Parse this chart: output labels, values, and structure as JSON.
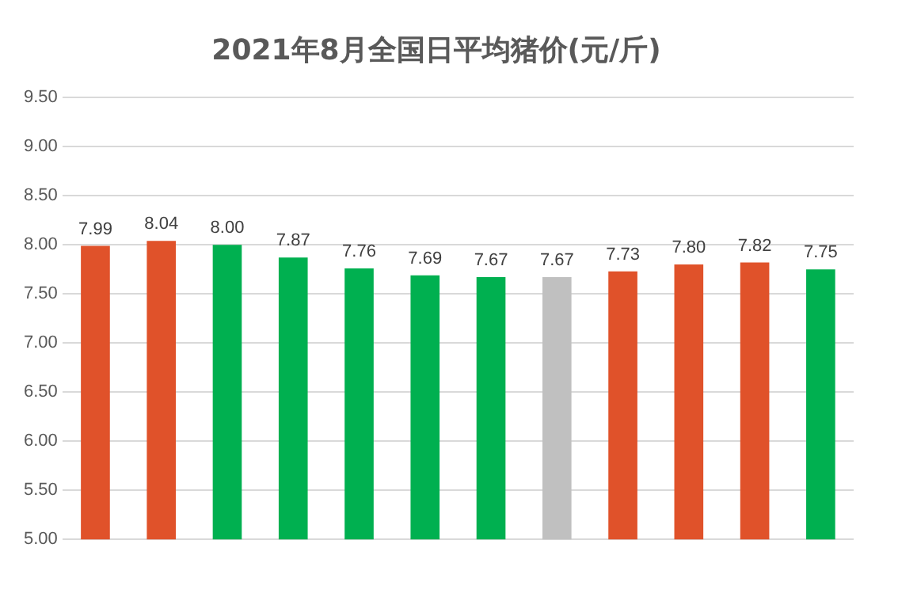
{
  "chart_data": {
    "type": "bar",
    "title": "2021年8月全国日平均猪价(元/斤)",
    "categories": [
      null,
      null,
      null,
      null,
      null,
      null,
      null,
      null,
      null,
      null,
      null,
      null
    ],
    "values": [
      7.99,
      8.04,
      8.0,
      7.87,
      7.76,
      7.69,
      7.67,
      7.67,
      7.73,
      7.8,
      7.82,
      7.75
    ],
    "colors": [
      "#e0522a",
      "#e0522a",
      "#00b050",
      "#00b050",
      "#00b050",
      "#00b050",
      "#00b050",
      "#c0c0c0",
      "#e0522a",
      "#e0522a",
      "#e0522a",
      "#00b050"
    ],
    "value_labels": [
      "7.99",
      "8.04",
      "8.00",
      "7.87",
      "7.76",
      "7.69",
      "7.67",
      "7.67",
      "7.73",
      "7.80",
      "7.82",
      "7.75"
    ],
    "ylim": [
      5,
      9.5
    ],
    "yticks": [
      {
        "value": 5,
        "label": "5.00"
      },
      {
        "value": 5.5,
        "label": "5.50"
      },
      {
        "value": 6,
        "label": "6.00"
      },
      {
        "value": 6.5,
        "label": "6.50"
      },
      {
        "value": 7,
        "label": "7.00"
      },
      {
        "value": 7.5,
        "label": "7.50"
      },
      {
        "value": 8,
        "label": "8.00"
      },
      {
        "value": 8.5,
        "label": "8.50"
      },
      {
        "value": 9,
        "label": "9.00"
      },
      {
        "value": 9.5,
        "label": "9.50"
      }
    ],
    "grid": "y",
    "legend": false
  }
}
